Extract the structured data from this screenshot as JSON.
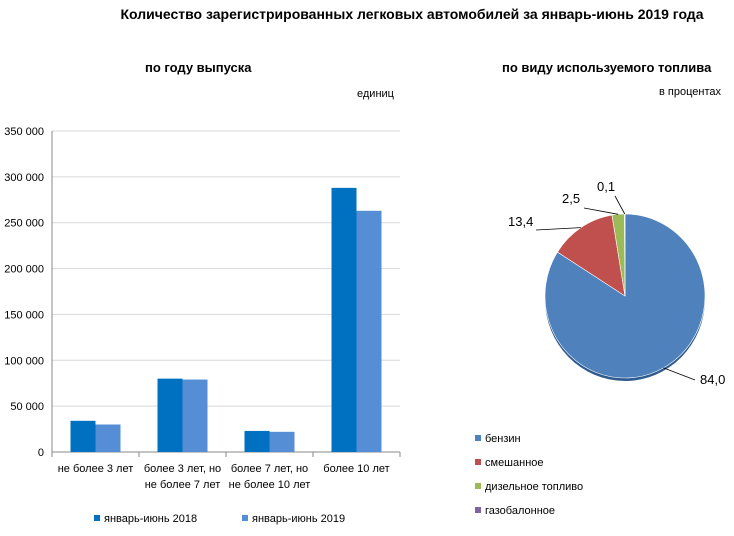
{
  "page": {
    "title": "Количество зарегистрированных легковых автомобилей за январь-июнь 2019 года"
  },
  "chart_data": [
    {
      "type": "bar",
      "title": "по году выпуска",
      "unit_label": "единиц",
      "categories": [
        "не более 3 лет",
        "более 3 лет, но не более 7 лет",
        "более 7 лет, но не более 10 лет",
        "более 10 лет"
      ],
      "category_lines": [
        [
          "не более 3 лет"
        ],
        [
          "более 3 лет, но",
          "не более 7 лет"
        ],
        [
          "более 7 лет, но",
          "не более 10 лет"
        ],
        [
          "более 10 лет"
        ]
      ],
      "series": [
        {
          "name": "январь-июнь 2018",
          "color": "#0070c0",
          "values": [
            34000,
            80000,
            23000,
            288000
          ]
        },
        {
          "name": "январь-июнь 2019",
          "color": "#558ed5",
          "values": [
            30000,
            79000,
            22000,
            263000
          ]
        }
      ],
      "ylim": [
        0,
        350000
      ],
      "yticks": [
        0,
        50000,
        100000,
        150000,
        200000,
        250000,
        300000,
        350000
      ],
      "ytick_labels": [
        "0",
        "50 000",
        "100 000",
        "150 000",
        "200 000",
        "250 000",
        "300 000",
        "350 000"
      ],
      "grid": true,
      "legend_position": "bottom"
    },
    {
      "type": "pie",
      "title": "по виду используемого топлива",
      "unit_label": "в процентах",
      "labels": [
        "бензин",
        "смешанное",
        "дизельное топливо",
        "газобалонное"
      ],
      "values": [
        84.0,
        13.4,
        2.5,
        0.1
      ],
      "value_labels": [
        "84,0",
        "13,4",
        "2,5",
        "0,1"
      ],
      "colors": [
        "#4f81bd",
        "#c0504d",
        "#9bbb59",
        "#8064a2"
      ],
      "legend_position": "bottom-left"
    }
  ]
}
